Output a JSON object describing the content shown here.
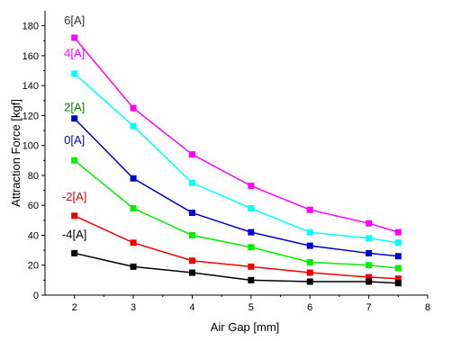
{
  "chart_data": {
    "type": "line",
    "xlabel": "Air Gap [mm]",
    "ylabel": "Attraction Force [kgf]",
    "xlim": [
      1.5,
      8
    ],
    "ylim": [
      0,
      190
    ],
    "x_ticks": [
      2,
      3,
      4,
      5,
      6,
      7,
      8
    ],
    "y_ticks": [
      0,
      20,
      40,
      60,
      80,
      100,
      120,
      140,
      160,
      180
    ],
    "x_tick_labels": [
      "2",
      "3",
      "4",
      "5",
      "6",
      "7",
      "8"
    ],
    "y_tick_labels": [
      "0",
      "20",
      "40",
      "60",
      "80",
      "100",
      "120",
      "140",
      "160",
      "180"
    ],
    "grid": false,
    "x": [
      2,
      3,
      4,
      5,
      6,
      7,
      7.5
    ],
    "series": [
      {
        "name": "6[A]",
        "color": "#ff00ff",
        "label_color": "#333333",
        "values": [
          172,
          125,
          94,
          73,
          57,
          48,
          42
        ]
      },
      {
        "name": "4[A]",
        "color": "#00ffff",
        "label_color": "#ff00ff",
        "values": [
          148,
          113,
          75,
          58,
          42,
          38,
          35
        ]
      },
      {
        "name": "2[A]",
        "color": "#00ee00",
        "label_color": "#008800",
        "values": [
          90,
          58,
          40,
          32,
          22,
          20,
          18
        ]
      },
      {
        "name": "0[A]",
        "color": "#0000cc",
        "label_color": "#0000cc",
        "values": [
          118,
          78,
          55,
          42,
          33,
          28,
          26
        ]
      },
      {
        "name": "-2[A]",
        "color": "#ee0000",
        "label_color": "#ee0000",
        "values": [
          53,
          35,
          23,
          19,
          15,
          12,
          11
        ]
      },
      {
        "name": "-4[A]",
        "color": "#000000",
        "label_color": "#000000",
        "values": [
          28,
          19,
          15,
          10,
          9,
          9,
          8
        ]
      }
    ],
    "series_labels": [
      {
        "series": "6[A]",
        "x": 2,
        "y": 181
      },
      {
        "series": "4[A]",
        "x": 2,
        "y": 159
      },
      {
        "series": "2[A]",
        "x": 2,
        "y": 123
      },
      {
        "series": "0[A]",
        "x": 2,
        "y": 101
      },
      {
        "series": "-2[A]",
        "x": 2,
        "y": 63
      },
      {
        "series": "-4[A]",
        "x": 2,
        "y": 38
      }
    ]
  }
}
